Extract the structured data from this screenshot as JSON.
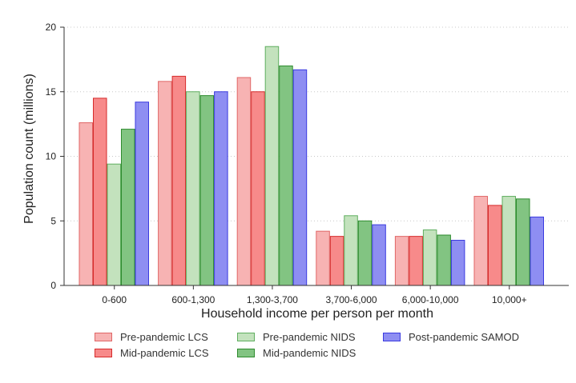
{
  "chart_data": {
    "type": "bar",
    "categories": [
      "0-600",
      "600-1,300",
      "1,300-3,700",
      "3,700-6,000",
      "6,000-10,000",
      "10,000+"
    ],
    "series": [
      {
        "name": "Pre-pandemic LCS",
        "values": [
          12.6,
          15.8,
          16.1,
          4.2,
          3.8,
          6.9
        ],
        "fill": "#f7b3b3",
        "stroke": "#e06666"
      },
      {
        "name": "Mid-pandemic LCS",
        "values": [
          14.5,
          16.2,
          15.0,
          3.8,
          3.8,
          6.2
        ],
        "fill": "#f78a8a",
        "stroke": "#d62b2b"
      },
      {
        "name": "Pre-pandemic NIDS",
        "values": [
          9.4,
          15.0,
          18.5,
          5.4,
          4.3,
          6.9
        ],
        "fill": "#c3e2bd",
        "stroke": "#5fae5f"
      },
      {
        "name": "Mid-pandemic NIDS",
        "values": [
          12.1,
          14.7,
          17.0,
          5.0,
          3.9,
          6.7
        ],
        "fill": "#82c482",
        "stroke": "#2e8b2e"
      },
      {
        "name": "Post-pandemic SAMOD",
        "values": [
          14.2,
          15.0,
          16.7,
          4.7,
          3.5,
          5.3
        ],
        "fill": "#8e8ef2",
        "stroke": "#3a3ae0"
      }
    ],
    "xlabel": "Household income per person per month",
    "ylabel": "Population count (millions)",
    "yticks": [
      "0",
      "5",
      "10",
      "15",
      "20"
    ],
    "ylim": [
      0,
      20
    ],
    "grid": true,
    "legend_position": "bottom"
  }
}
